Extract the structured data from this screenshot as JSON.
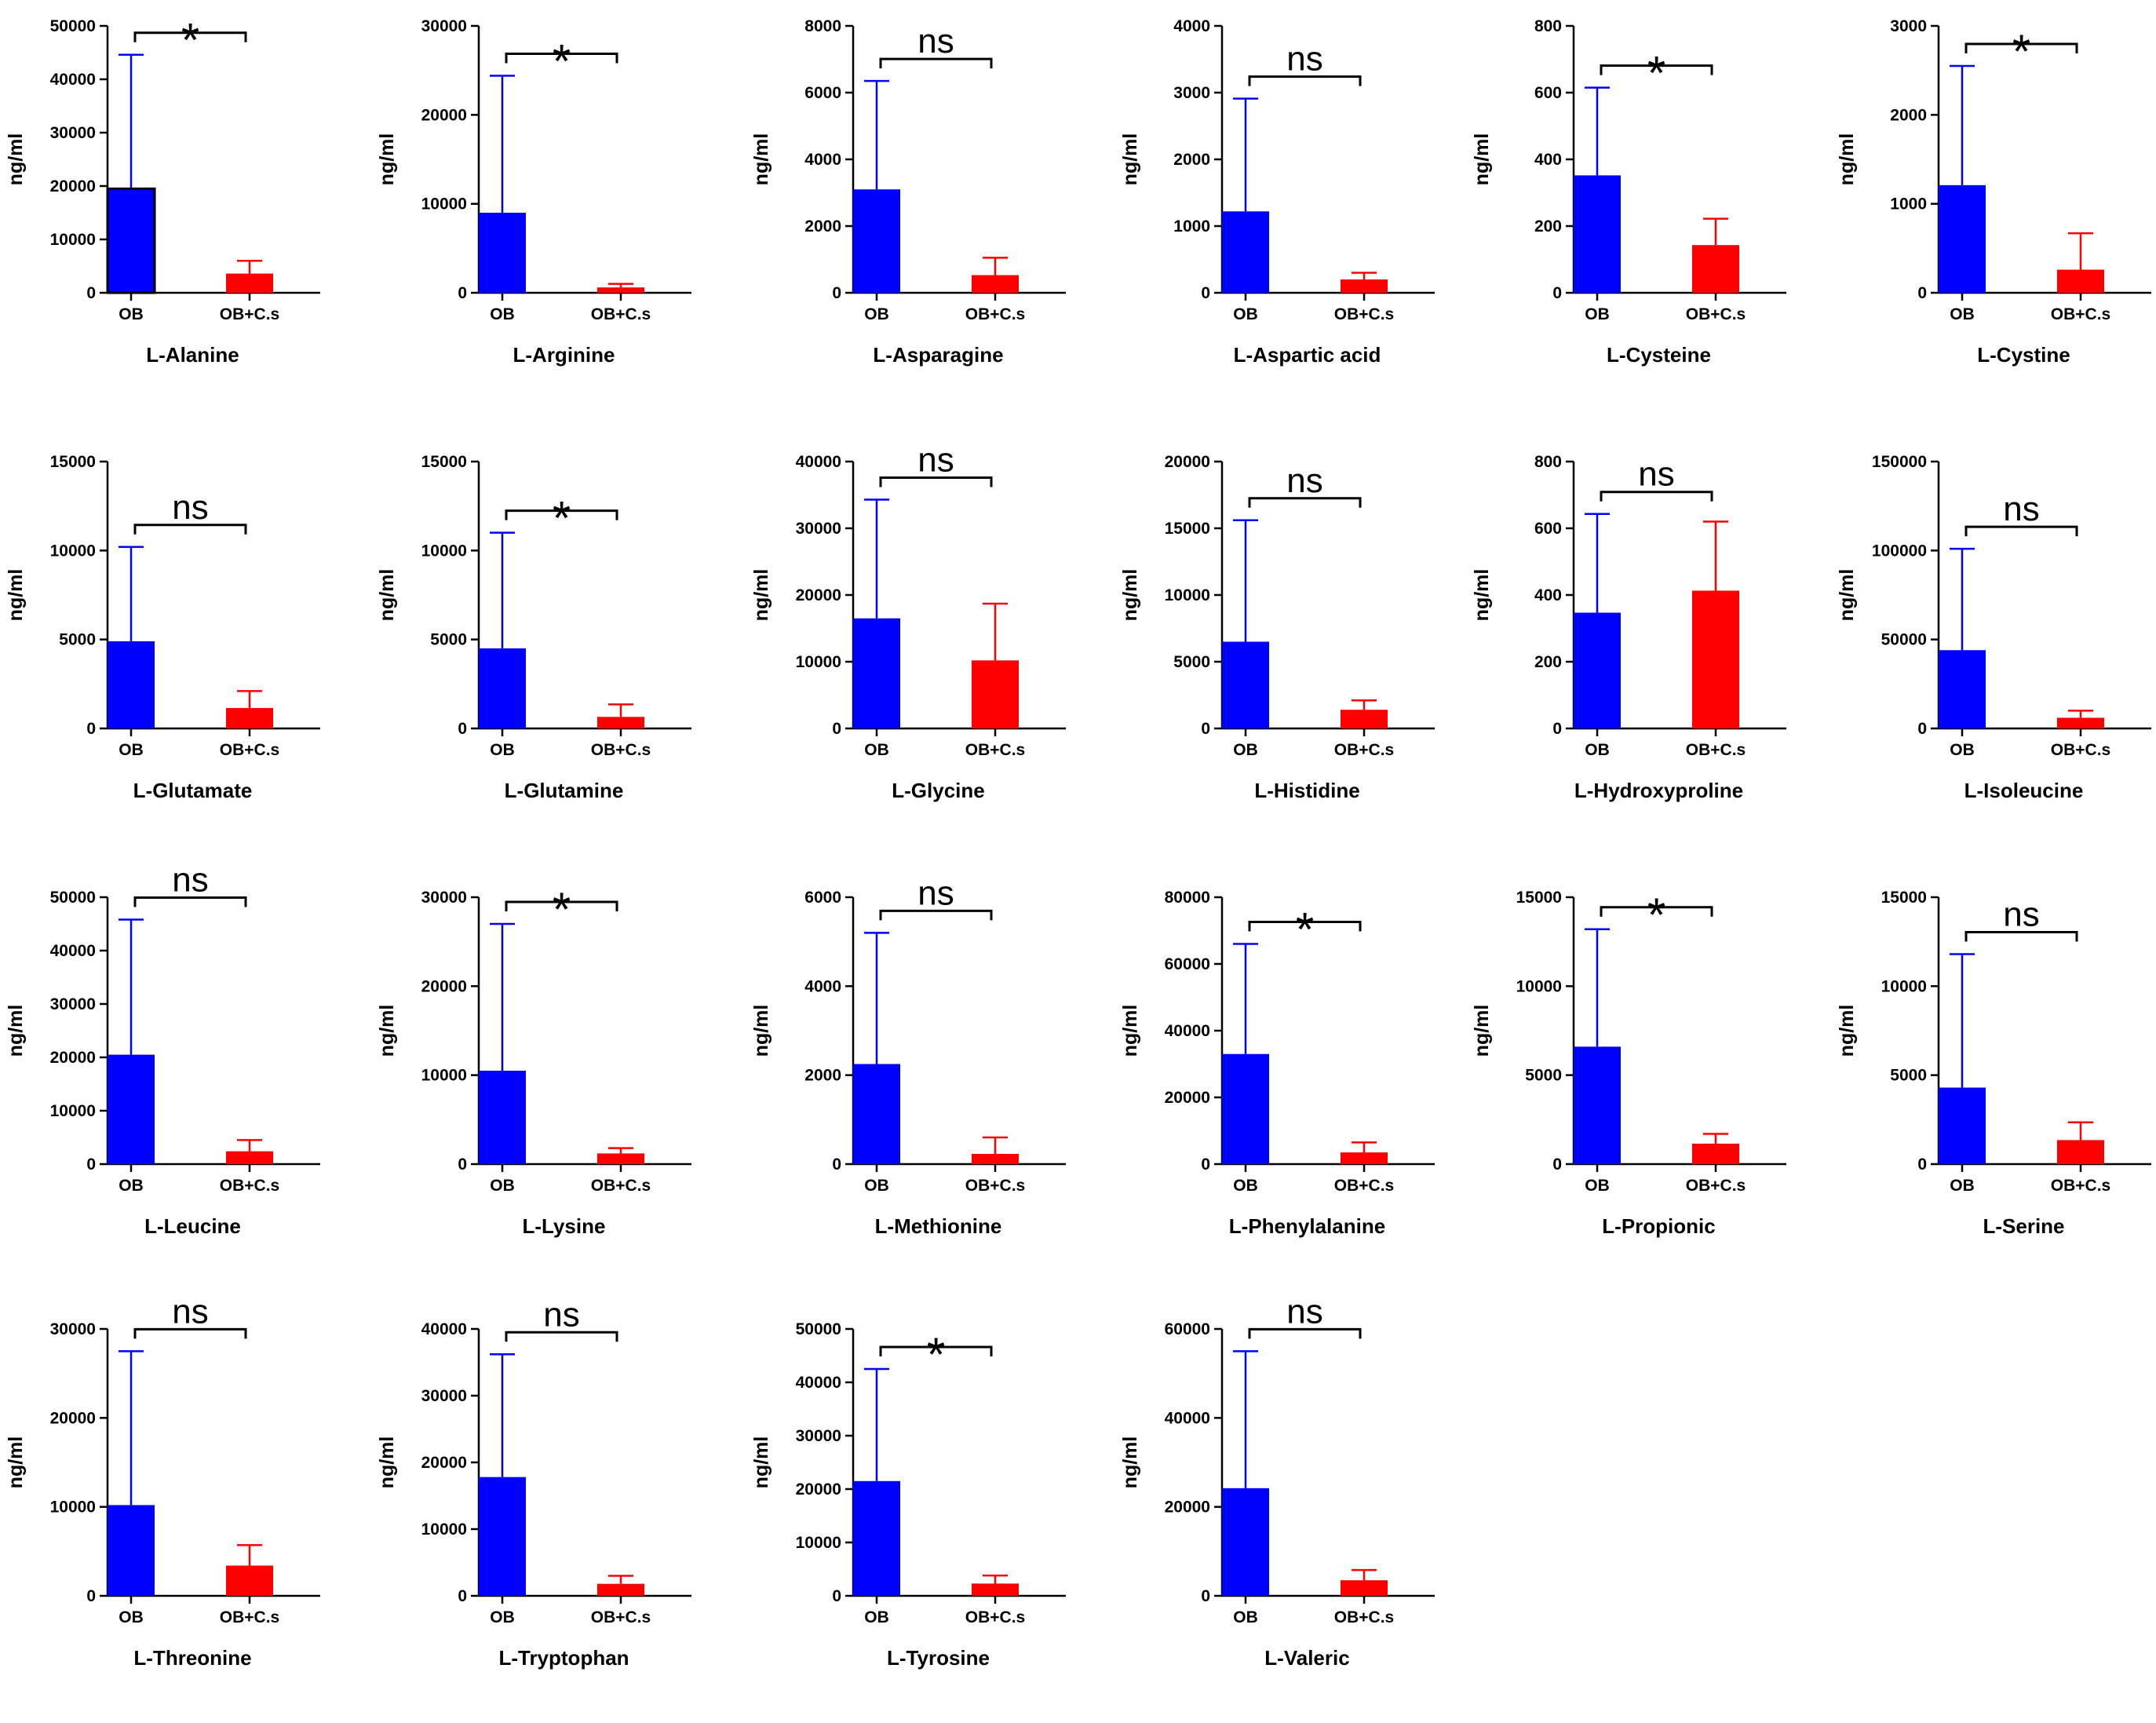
{
  "figure": {
    "colors": {
      "OB": "#0000ff",
      "OB+C.s": "#ff0000",
      "axis": "#000000"
    },
    "chart_data": [
      {
        "type": "bar",
        "title": "L-Alanine",
        "xlabel": "L-Alanine",
        "ylabel": "ng/ml",
        "ylim": [
          0,
          50000
        ],
        "yticks": [
          "0",
          "10000",
          "20000",
          "30000",
          "40000",
          "50000"
        ],
        "categories": [
          "OB",
          "OB+C.s"
        ],
        "values": [
          19500,
          3600
        ],
        "error_upper": [
          44600,
          6000
        ],
        "significance": "*"
      },
      {
        "type": "bar",
        "title": "L-Arginine",
        "xlabel": "L-Arginine",
        "ylabel": "ng/ml",
        "ylim": [
          0,
          30000
        ],
        "yticks": [
          "0",
          "10000",
          "20000",
          "30000"
        ],
        "categories": [
          "OB",
          "OB+C.s"
        ],
        "values": [
          9000,
          600
        ],
        "error_upper": [
          24400,
          1000
        ],
        "significance": "*"
      },
      {
        "type": "bar",
        "title": "L-Asparagine",
        "xlabel": "L-Asparagine",
        "ylabel": "ng/ml",
        "ylim": [
          0,
          8000
        ],
        "yticks": [
          "0",
          "2000",
          "4000",
          "6000",
          "8000"
        ],
        "categories": [
          "OB",
          "OB+C.s"
        ],
        "values": [
          3100,
          530
        ],
        "error_upper": [
          6350,
          1050
        ],
        "significance": "ns"
      },
      {
        "type": "bar",
        "title": "L-Aspartic acid",
        "xlabel": "L-Aspartic acid",
        "ylabel": "ng/ml",
        "ylim": [
          0,
          4000
        ],
        "yticks": [
          "0",
          "1000",
          "2000",
          "3000",
          "4000"
        ],
        "categories": [
          "OB",
          "OB+C.s"
        ],
        "values": [
          1220,
          200
        ],
        "error_upper": [
          2910,
          300
        ],
        "significance": "ns"
      },
      {
        "type": "bar",
        "title": "L-Cysteine",
        "xlabel": "L-Cysteine",
        "ylabel": "ng/ml",
        "ylim": [
          0,
          800
        ],
        "yticks": [
          "0",
          "200",
          "400",
          "600",
          "800"
        ],
        "categories": [
          "OB",
          "OB+C.s"
        ],
        "values": [
          352,
          143
        ],
        "error_upper": [
          615,
          222
        ],
        "significance": "*"
      },
      {
        "type": "bar",
        "title": "L-Cystine",
        "xlabel": "L-Cystine",
        "ylabel": "ng/ml",
        "ylim": [
          0,
          3000
        ],
        "yticks": [
          "0",
          "1000",
          "2000",
          "3000"
        ],
        "categories": [
          "OB",
          "OB+C.s"
        ],
        "values": [
          1210,
          260
        ],
        "error_upper": [
          2550,
          670
        ],
        "significance": "*"
      },
      {
        "type": "bar",
        "title": "L-Glutamate",
        "xlabel": "L-Glutamate",
        "ylabel": "ng/ml",
        "ylim": [
          0,
          15000
        ],
        "yticks": [
          "0",
          "5000",
          "10000",
          "15000"
        ],
        "categories": [
          "OB",
          "OB+C.s"
        ],
        "values": [
          4900,
          1150
        ],
        "error_upper": [
          10200,
          2100
        ],
        "significance": "ns"
      },
      {
        "type": "bar",
        "title": "L-Glutamine",
        "xlabel": "L-Glutamine",
        "ylabel": "ng/ml",
        "ylim": [
          0,
          15000
        ],
        "yticks": [
          "0",
          "5000",
          "10000",
          "15000"
        ],
        "categories": [
          "OB",
          "OB+C.s"
        ],
        "values": [
          4500,
          650
        ],
        "error_upper": [
          11000,
          1350
        ],
        "significance": "*"
      },
      {
        "type": "bar",
        "title": "L-Glycine",
        "xlabel": "L-Glycine",
        "ylabel": "ng/ml",
        "ylim": [
          0,
          40000
        ],
        "yticks": [
          "0",
          "10000",
          "20000",
          "30000",
          "40000"
        ],
        "categories": [
          "OB",
          "OB+C.s"
        ],
        "values": [
          16500,
          10200
        ],
        "error_upper": [
          34300,
          18700
        ],
        "significance": "ns"
      },
      {
        "type": "bar",
        "title": "L-Histidine",
        "xlabel": "L-Histidine",
        "ylabel": "ng/ml",
        "ylim": [
          0,
          20000
        ],
        "yticks": [
          "0",
          "5000",
          "10000",
          "15000",
          "20000"
        ],
        "categories": [
          "OB",
          "OB+C.s"
        ],
        "values": [
          6500,
          1400
        ],
        "error_upper": [
          15600,
          2100
        ],
        "significance": "ns"
      },
      {
        "type": "bar",
        "title": "L-Hydroxyproline",
        "xlabel": "L-Hydroxyproline",
        "ylabel": "ng/ml",
        "ylim": [
          0,
          800
        ],
        "yticks": [
          "0",
          "200",
          "400",
          "600",
          "800"
        ],
        "categories": [
          "OB",
          "OB+C.s"
        ],
        "values": [
          347,
          413
        ],
        "error_upper": [
          643,
          620
        ],
        "significance": "ns"
      },
      {
        "type": "bar",
        "title": "L-Isoleucine",
        "xlabel": "L-Isoleucine",
        "ylabel": "ng/ml",
        "ylim": [
          0,
          150000
        ],
        "yticks": [
          "0",
          "50000",
          "100000",
          "150000"
        ],
        "categories": [
          "OB",
          "OB+C.s"
        ],
        "values": [
          44000,
          6000
        ],
        "error_upper": [
          101000,
          10000
        ],
        "significance": "ns"
      },
      {
        "type": "bar",
        "title": "L-Leucine",
        "xlabel": "L-Leucine",
        "ylabel": "ng/ml",
        "ylim": [
          0,
          50000
        ],
        "yticks": [
          "0",
          "10000",
          "20000",
          "30000",
          "40000",
          "50000"
        ],
        "categories": [
          "OB",
          "OB+C.s"
        ],
        "values": [
          20500,
          2400
        ],
        "error_upper": [
          45800,
          4500
        ],
        "significance": "ns"
      },
      {
        "type": "bar",
        "title": "L-Lysine",
        "xlabel": "L-Lysine",
        "ylabel": "ng/ml",
        "ylim": [
          0,
          30000
        ],
        "yticks": [
          "0",
          "10000",
          "20000",
          "30000"
        ],
        "categories": [
          "OB",
          "OB+C.s"
        ],
        "values": [
          10500,
          1200
        ],
        "error_upper": [
          27000,
          1800
        ],
        "significance": "*"
      },
      {
        "type": "bar",
        "title": "L-Methionine",
        "xlabel": "L-Methionine",
        "ylabel": "ng/ml",
        "ylim": [
          0,
          6000
        ],
        "yticks": [
          "0",
          "2000",
          "4000",
          "6000"
        ],
        "categories": [
          "OB",
          "OB+C.s"
        ],
        "values": [
          2250,
          230
        ],
        "error_upper": [
          5200,
          600
        ],
        "significance": "ns"
      },
      {
        "type": "bar",
        "title": "L-Phenylalanine",
        "xlabel": "L-Phenylalanine",
        "ylabel": "ng/ml",
        "ylim": [
          0,
          80000
        ],
        "yticks": [
          "0",
          "20000",
          "40000",
          "60000",
          "80000"
        ],
        "categories": [
          "OB",
          "OB+C.s"
        ],
        "values": [
          33000,
          3500
        ],
        "error_upper": [
          66000,
          6500
        ],
        "significance": "*"
      },
      {
        "type": "bar",
        "title": "L-Propionic",
        "xlabel": "L-Propionic",
        "ylabel": "ng/ml",
        "ylim": [
          0,
          15000
        ],
        "yticks": [
          "0",
          "5000",
          "10000",
          "15000"
        ],
        "categories": [
          "OB",
          "OB+C.s"
        ],
        "values": [
          6600,
          1150
        ],
        "error_upper": [
          13200,
          1700
        ],
        "significance": "*"
      },
      {
        "type": "bar",
        "title": "L-Serine",
        "xlabel": "L-Serine",
        "ylabel": "ng/ml",
        "ylim": [
          0,
          15000
        ],
        "yticks": [
          "0",
          "5000",
          "10000",
          "15000"
        ],
        "categories": [
          "OB",
          "OB+C.s"
        ],
        "values": [
          4300,
          1350
        ],
        "error_upper": [
          11800,
          2350
        ],
        "significance": "ns"
      },
      {
        "type": "bar",
        "title": "L-Threonine",
        "xlabel": "L-Threonine",
        "ylabel": "ng/ml",
        "ylim": [
          0,
          30000
        ],
        "yticks": [
          "0",
          "10000",
          "20000",
          "30000"
        ],
        "categories": [
          "OB",
          "OB+C.s"
        ],
        "values": [
          10200,
          3400
        ],
        "error_upper": [
          27500,
          5700
        ],
        "significance": "ns"
      },
      {
        "type": "bar",
        "title": "L-Tryptophan",
        "xlabel": "L-Tryptophan",
        "ylabel": "ng/ml",
        "ylim": [
          0,
          40000
        ],
        "yticks": [
          "0",
          "10000",
          "20000",
          "30000",
          "40000"
        ],
        "categories": [
          "OB",
          "OB+C.s"
        ],
        "values": [
          17800,
          1800
        ],
        "error_upper": [
          36200,
          3000
        ],
        "significance": "ns"
      },
      {
        "type": "bar",
        "title": "L-Tyrosine",
        "xlabel": "L-Tyrosine",
        "ylabel": "ng/ml",
        "ylim": [
          0,
          50000
        ],
        "yticks": [
          "0",
          "10000",
          "20000",
          "30000",
          "40000",
          "50000"
        ],
        "categories": [
          "OB",
          "OB+C.s"
        ],
        "values": [
          21500,
          2300
        ],
        "error_upper": [
          42500,
          3800
        ],
        "significance": "*"
      },
      {
        "type": "bar",
        "title": "L-Valeric",
        "xlabel": "L-Valeric",
        "ylabel": "ng/ml",
        "ylim": [
          0,
          60000
        ],
        "yticks": [
          "0",
          "20000",
          "40000",
          "60000"
        ],
        "categories": [
          "OB",
          "OB+C.s"
        ],
        "values": [
          24200,
          3500
        ],
        "error_upper": [
          55000,
          5800
        ],
        "significance": "ns"
      }
    ]
  }
}
